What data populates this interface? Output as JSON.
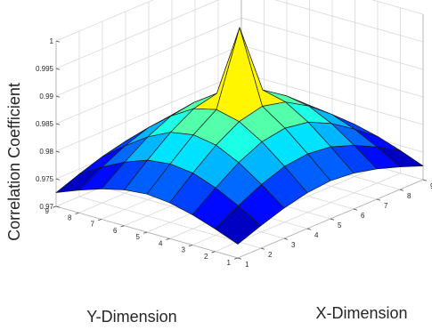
{
  "chart_data": {
    "type": "surface",
    "title": "",
    "xlabel": "X-Dimension",
    "ylabel": "Y-Dimension",
    "zlabel": "Correlation Coefficient",
    "x": [
      1,
      2,
      3,
      4,
      5,
      6,
      7,
      8,
      9
    ],
    "y": [
      1,
      2,
      3,
      4,
      5,
      6,
      7,
      8,
      9
    ],
    "x_ticks": [
      "1",
      "2",
      "3",
      "4",
      "5",
      "6",
      "7",
      "8",
      "9"
    ],
    "y_ticks": [
      "1",
      "2",
      "3",
      "4",
      "5",
      "6",
      "7",
      "8",
      "9"
    ],
    "z_ticks": [
      "0.97",
      "0.975",
      "0.98",
      "0.985",
      "0.99",
      "0.995",
      "1"
    ],
    "zlim": [
      0.97,
      1.0
    ],
    "colormap": "jet",
    "grid": true,
    "z": [
      [
        0.9725,
        0.9741,
        0.9755,
        0.9765,
        0.9769,
        0.9765,
        0.9755,
        0.9741,
        0.9725
      ],
      [
        0.9741,
        0.9765,
        0.9786,
        0.9801,
        0.9806,
        0.9801,
        0.9786,
        0.9765,
        0.9741
      ],
      [
        0.9755,
        0.9786,
        0.9814,
        0.9834,
        0.9841,
        0.9834,
        0.9814,
        0.9786,
        0.9755
      ],
      [
        0.9765,
        0.9801,
        0.9834,
        0.9859,
        0.9869,
        0.9859,
        0.9834,
        0.9801,
        0.9765
      ],
      [
        0.9769,
        0.9806,
        0.9841,
        0.9869,
        1.0,
        0.9869,
        0.9841,
        0.9806,
        0.9769
      ],
      [
        0.9765,
        0.9801,
        0.9834,
        0.9859,
        0.9869,
        0.9859,
        0.9834,
        0.9801,
        0.9765
      ],
      [
        0.9755,
        0.9786,
        0.9814,
        0.9834,
        0.9841,
        0.9834,
        0.9814,
        0.9786,
        0.9755
      ],
      [
        0.9741,
        0.9765,
        0.9786,
        0.9801,
        0.9806,
        0.9801,
        0.9786,
        0.9765,
        0.9741
      ],
      [
        0.9725,
        0.9741,
        0.9755,
        0.9765,
        0.9769,
        0.9765,
        0.9755,
        0.9741,
        0.9725
      ]
    ]
  }
}
